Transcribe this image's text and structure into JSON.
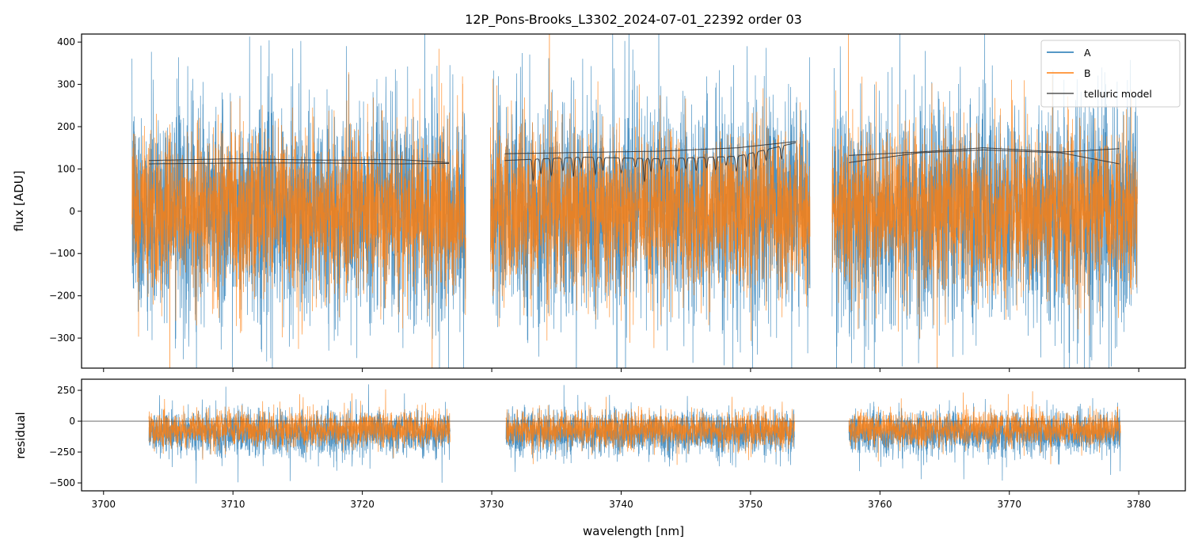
{
  "chart_data": {
    "type": "line",
    "title": "12P_Pons-Brooks_L3302_2024-07-01_22392  order 03",
    "colors": {
      "A": "#1f77b4",
      "B": "#ff7f0e",
      "telluric": "#333333",
      "zero_line": "#777777"
    },
    "legend": {
      "placement": "top-right",
      "entries": [
        "A",
        "B",
        "telluric model"
      ]
    },
    "xlabel": "wavelength [nm]",
    "xlim": [
      3698.3,
      3783.6
    ],
    "xticks": [
      3700,
      3710,
      3720,
      3730,
      3740,
      3750,
      3760,
      3770,
      3780
    ],
    "panels": [
      {
        "name": "flux",
        "ylabel": "flux [ADU]",
        "ylim": [
          -371,
          419
        ],
        "yticks": [
          400,
          300,
          200,
          100,
          0,
          -100,
          -200,
          -300
        ],
        "ytick_labels": [
          "400",
          "300",
          "200",
          "100",
          "0",
          "−100",
          "−200",
          "−300"
        ],
        "segments": [
          [
            3702.2,
            3728.0
          ],
          [
            3729.9,
            3754.6
          ],
          [
            3756.3,
            3779.9
          ]
        ],
        "series": [
          {
            "name": "A",
            "mean": 0,
            "std": 130
          },
          {
            "name": "B",
            "mean": 0,
            "std": 95
          }
        ],
        "telluric_model": [
          {
            "x": [
              3703.5,
              3710,
              3717,
              3723,
              3726.7
            ],
            "y": [
              120,
              124,
              121,
              122,
              115
            ]
          },
          {
            "x": [
              3703.5,
              3710,
              3717,
              3723,
              3726.7
            ],
            "y": [
              112,
              114,
              114,
              112,
              113
            ]
          },
          {
            "x": [
              3731.0,
              3737,
              3743,
              3749,
              3753.5
            ],
            "y": [
              136,
              139,
              142,
              150,
              165
            ]
          },
          {
            "x": [
              3731.0,
              3737,
              3743,
              3749,
              3753.5
            ],
            "y": [
              120,
              128,
              124,
              130,
              162
            ],
            "dips": [
              3733.2,
              3733.8,
              3734.6,
              3735.5,
              3736.3,
              3736.9,
              3738.0,
              3738.6,
              3740.0,
              3741.1,
              3741.8,
              3742.3,
              3743.1,
              3744.3,
              3745.0,
              3745.8,
              3746.6,
              3747.3,
              3748.1,
              3748.9,
              3749.7,
              3750.4,
              3751.2,
              3752.4
            ],
            "dip_depths": [
              50,
              35,
              40,
              30,
              45,
              25,
              40,
              30,
              35,
              20,
              55,
              30,
              25,
              30,
              25,
              30,
              25,
              30,
              20,
              35,
              30,
              40,
              25,
              30
            ]
          },
          {
            "x": [
              3757.6,
              3763,
              3768,
              3774,
              3778.5
            ],
            "y": [
              132,
              140,
              150,
              140,
              148
            ]
          },
          {
            "x": [
              3757.6,
              3763,
              3768,
              3774,
              3778.5
            ],
            "y": [
              115,
              138,
              145,
              138,
              112
            ]
          }
        ]
      },
      {
        "name": "residual",
        "ylabel": "residual",
        "ylim": [
          -564,
          340
        ],
        "yticks": [
          250,
          0,
          -250,
          -500
        ],
        "ytick_labels": [
          "250",
          "0",
          "−250",
          "−500"
        ],
        "segments": [
          [
            3703.5,
            3726.8
          ],
          [
            3731.1,
            3753.4
          ],
          [
            3757.6,
            3778.6
          ]
        ],
        "series": [
          {
            "name": "A",
            "mean": -95,
            "std": 90
          },
          {
            "name": "B",
            "mean": -65,
            "std": 70
          }
        ],
        "zero_line": 0
      }
    ]
  }
}
